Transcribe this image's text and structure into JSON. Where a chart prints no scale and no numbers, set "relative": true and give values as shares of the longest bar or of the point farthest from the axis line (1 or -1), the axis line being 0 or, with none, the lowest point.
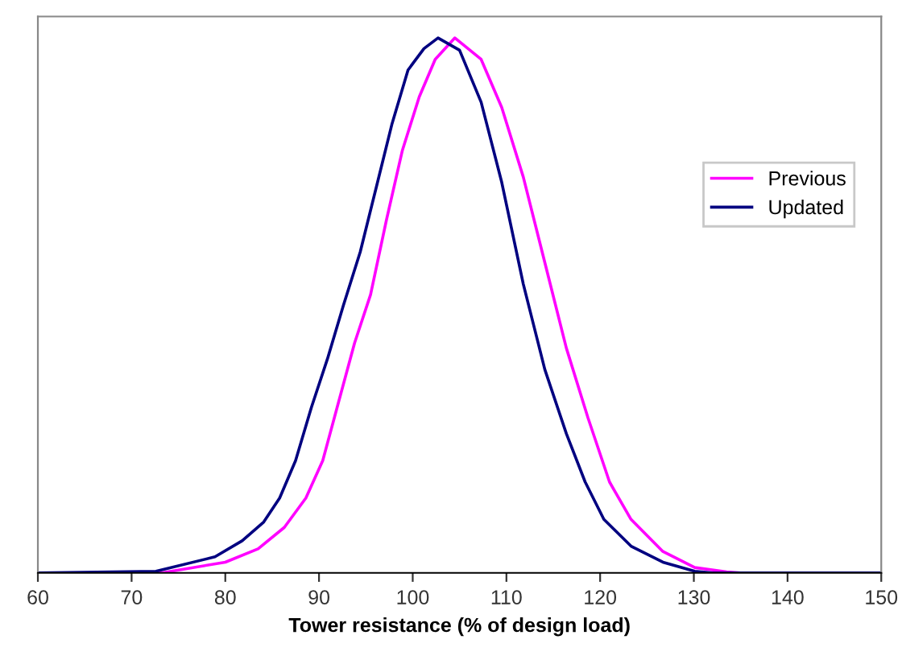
{
  "chart_data": {
    "type": "line",
    "relative": true,
    "xlabel": "Tower resistance (% of design load)",
    "xlim": [
      60,
      150
    ],
    "xticks": [
      60,
      70,
      80,
      90,
      100,
      110,
      120,
      130,
      140,
      150
    ],
    "tick_labels": "x",
    "grid": false,
    "legend": "right",
    "marker": "none",
    "line_style": "solid",
    "series": [
      {
        "name": "Previous",
        "color": "#ff00ff",
        "x": [
          60,
          73.2,
          80.0,
          83.5,
          86.3,
          88.6,
          90.4,
          92.1,
          93.8,
          95.5,
          97.2,
          98.9,
          100.7,
          102.4,
          104.5,
          107.3,
          109.5,
          111.8,
          114.1,
          116.4,
          118.7,
          121.0,
          123.3,
          126.7,
          130.1,
          133.5,
          135,
          150
        ],
        "values": [
          0,
          0,
          0.02,
          0.045,
          0.085,
          0.14,
          0.21,
          0.32,
          0.43,
          0.52,
          0.66,
          0.79,
          0.89,
          0.96,
          1.0,
          0.96,
          0.87,
          0.74,
          0.58,
          0.42,
          0.29,
          0.17,
          0.1,
          0.04,
          0.01,
          0.002,
          0,
          0
        ]
      },
      {
        "name": "Updated",
        "color": "#000080",
        "x": [
          60,
          72.6,
          78.9,
          81.8,
          84.1,
          85.8,
          87.5,
          89.2,
          90.9,
          92.6,
          94.4,
          96.1,
          97.8,
          99.5,
          101.2,
          102.7,
          105.0,
          107.3,
          109.5,
          111.8,
          114.1,
          116.4,
          118.4,
          120.4,
          123.3,
          126.7,
          130.1,
          132,
          150
        ],
        "values": [
          0,
          0.003,
          0.03,
          0.06,
          0.095,
          0.14,
          0.21,
          0.31,
          0.4,
          0.5,
          0.6,
          0.72,
          0.84,
          0.94,
          0.98,
          1.0,
          0.977,
          0.88,
          0.73,
          0.54,
          0.38,
          0.26,
          0.17,
          0.1,
          0.05,
          0.02,
          0.003,
          0,
          0
        ]
      }
    ]
  }
}
